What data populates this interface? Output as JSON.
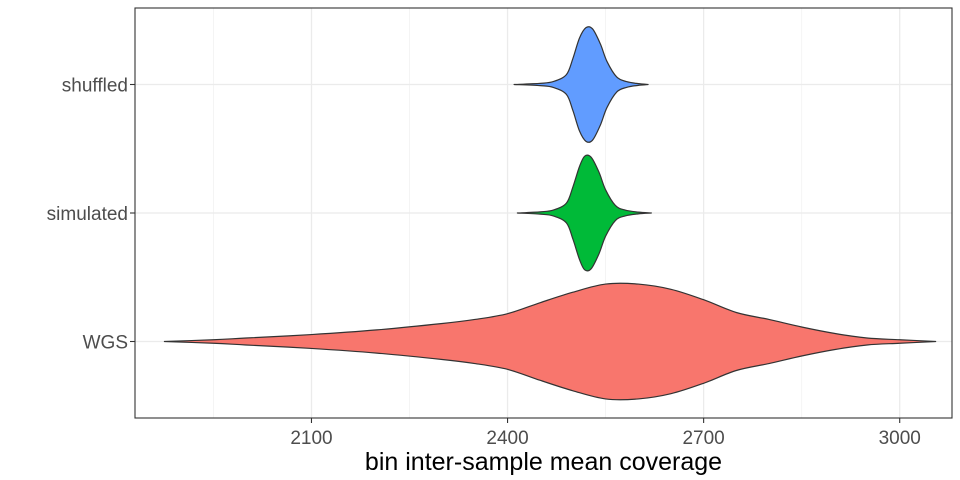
{
  "chart_data": {
    "type": "violin",
    "title": "",
    "xlabel": "bin inter-sample mean coverage",
    "ylabel": "",
    "xlim": [
      1830,
      3080
    ],
    "x_ticks": [
      2100,
      2400,
      2700,
      3000
    ],
    "x_tick_labels": [
      "2100",
      "2400",
      "2700",
      "3000"
    ],
    "categories": [
      "WGS",
      "simulated",
      "shuffled"
    ],
    "grid": true,
    "legend": "none",
    "series": [
      {
        "category": "WGS",
        "color": "#F8766D",
        "min": 1875,
        "max": 3055,
        "density": [
          [
            1875,
            0.0
          ],
          [
            1950,
            0.03
          ],
          [
            2000,
            0.06
          ],
          [
            2100,
            0.12
          ],
          [
            2200,
            0.2
          ],
          [
            2300,
            0.31
          ],
          [
            2350,
            0.38
          ],
          [
            2400,
            0.48
          ],
          [
            2450,
            0.67
          ],
          [
            2500,
            0.85
          ],
          [
            2550,
            0.99
          ],
          [
            2600,
            0.99
          ],
          [
            2650,
            0.9
          ],
          [
            2700,
            0.72
          ],
          [
            2750,
            0.5
          ],
          [
            2800,
            0.38
          ],
          [
            2850,
            0.25
          ],
          [
            2900,
            0.14
          ],
          [
            2950,
            0.06
          ],
          [
            3000,
            0.03
          ],
          [
            3055,
            0.0
          ]
        ]
      },
      {
        "category": "simulated",
        "color": "#00BA38",
        "min": 2415,
        "max": 2620,
        "density": [
          [
            2415,
            0.0
          ],
          [
            2450,
            0.02
          ],
          [
            2470,
            0.05
          ],
          [
            2490,
            0.17
          ],
          [
            2500,
            0.45
          ],
          [
            2510,
            0.8
          ],
          [
            2518,
            0.98
          ],
          [
            2528,
            0.96
          ],
          [
            2540,
            0.7
          ],
          [
            2550,
            0.4
          ],
          [
            2565,
            0.13
          ],
          [
            2580,
            0.05
          ],
          [
            2600,
            0.015
          ],
          [
            2620,
            0.0
          ]
        ]
      },
      {
        "category": "shuffled",
        "color": "#619CFF",
        "min": 2410,
        "max": 2615,
        "density": [
          [
            2410,
            0.0
          ],
          [
            2450,
            0.02
          ],
          [
            2470,
            0.05
          ],
          [
            2490,
            0.17
          ],
          [
            2500,
            0.45
          ],
          [
            2510,
            0.8
          ],
          [
            2520,
            0.98
          ],
          [
            2530,
            0.96
          ],
          [
            2542,
            0.7
          ],
          [
            2552,
            0.4
          ],
          [
            2567,
            0.13
          ],
          [
            2582,
            0.05
          ],
          [
            2600,
            0.015
          ],
          [
            2615,
            0.0
          ]
        ]
      }
    ]
  }
}
